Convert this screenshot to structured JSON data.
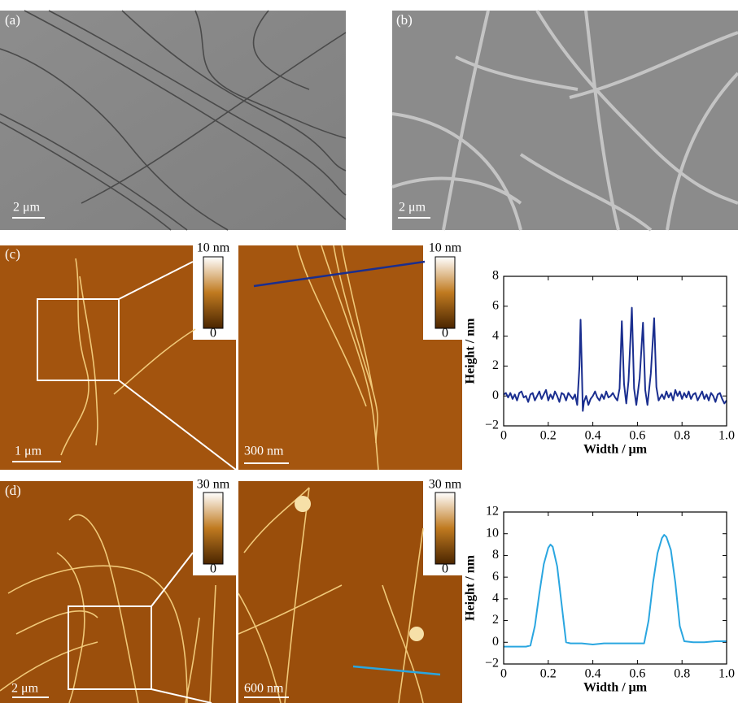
{
  "figure": {
    "panel_labels": [
      "(a)",
      "(b)",
      "(c)",
      "(d)"
    ],
    "scale_bars": [
      "2 μm",
      "2 μm",
      "1 μm",
      "300 nm",
      "2 μm",
      "600 nm"
    ],
    "colorbars": [
      {
        "max": "10 nm",
        "min": "0"
      },
      {
        "max": "10 nm",
        "min": "0"
      },
      {
        "max": "30 nm",
        "min": "0"
      },
      {
        "max": "30 nm",
        "min": "0"
      }
    ]
  },
  "chart_data": [
    {
      "type": "line",
      "x_label": "Width / μm",
      "y_label": "Height / nm",
      "color": "#1a2e8f",
      "xlim": [
        0,
        1
      ],
      "ylim": [
        -2,
        8
      ],
      "xticks": [
        0,
        0.2,
        0.4,
        0.6,
        0.8,
        {
          "value": 1,
          "label": "1.0"
        }
      ],
      "yticks": [
        {
          "value": -2,
          "label": "−2"
        },
        0,
        2,
        4,
        6,
        8
      ],
      "x": [
        0,
        0.01,
        0.02,
        0.03,
        0.04,
        0.05,
        0.06,
        0.07,
        0.08,
        0.09,
        0.1,
        0.11,
        0.12,
        0.13,
        0.14,
        0.15,
        0.16,
        0.17,
        0.18,
        0.19,
        0.2,
        0.21,
        0.22,
        0.23,
        0.24,
        0.25,
        0.26,
        0.27,
        0.28,
        0.29,
        0.3,
        0.31,
        0.32,
        0.33,
        0.34,
        0.345,
        0.35,
        0.355,
        0.36,
        0.37,
        0.38,
        0.39,
        0.4,
        0.41,
        0.42,
        0.43,
        0.44,
        0.45,
        0.46,
        0.47,
        0.48,
        0.49,
        0.5,
        0.51,
        0.52,
        0.53,
        0.54,
        0.55,
        0.56,
        0.575,
        0.585,
        0.595,
        0.61,
        0.625,
        0.635,
        0.645,
        0.66,
        0.675,
        0.685,
        0.695,
        0.71,
        0.72,
        0.73,
        0.74,
        0.75,
        0.76,
        0.77,
        0.78,
        0.79,
        0.8,
        0.81,
        0.82,
        0.83,
        0.84,
        0.85,
        0.86,
        0.87,
        0.88,
        0.89,
        0.9,
        0.91,
        0.92,
        0.93,
        0.94,
        0.95,
        0.96,
        0.97,
        0.98,
        0.99,
        1.0
      ],
      "values": [
        0.1,
        0.2,
        -0.1,
        0.2,
        -0.2,
        0.1,
        -0.3,
        0.2,
        0.3,
        -0.1,
        0.0,
        -0.4,
        0.1,
        0.2,
        -0.3,
        0.0,
        0.3,
        -0.2,
        0.1,
        0.4,
        -0.3,
        0.1,
        -0.2,
        0.3,
        0.0,
        -0.4,
        0.2,
        0.1,
        -0.3,
        0.2,
        0.0,
        -0.2,
        0.1,
        -0.6,
        2.0,
        5.1,
        2.2,
        -1.0,
        -0.4,
        0.0,
        -0.6,
        -0.2,
        0.0,
        0.3,
        -0.1,
        -0.3,
        0.1,
        -0.2,
        0.3,
        -0.1,
        0.0,
        0.2,
        -0.1,
        -0.3,
        0.5,
        5.0,
        0.8,
        -0.5,
        1.0,
        5.9,
        0.5,
        -0.6,
        1.2,
        4.9,
        0.4,
        -0.6,
        1.5,
        5.2,
        0.6,
        -0.3,
        0.1,
        -0.2,
        0.3,
        -0.1,
        0.2,
        -0.3,
        0.4,
        0.0,
        0.3,
        -0.2,
        0.2,
        -0.1,
        0.3,
        -0.2,
        0.1,
        0.2,
        -0.3,
        0.0,
        0.3,
        -0.2,
        0.1,
        -0.3,
        0.2,
        0.0,
        -0.4,
        0.1,
        0.2,
        -0.2,
        -0.5,
        -0.3
      ]
    },
    {
      "type": "line",
      "x_label": "Width / μm",
      "y_label": "Height / nm",
      "color": "#2aa6e0",
      "xlim": [
        0,
        1
      ],
      "ylim": [
        -2,
        12
      ],
      "xticks": [
        0,
        0.2,
        0.4,
        0.6,
        0.8,
        {
          "value": 1,
          "label": "1.0"
        }
      ],
      "yticks": [
        {
          "value": -2,
          "label": "−2"
        },
        0,
        2,
        4,
        6,
        8,
        10,
        12
      ],
      "x": [
        0,
        0.05,
        0.1,
        0.12,
        0.14,
        0.16,
        0.18,
        0.2,
        0.21,
        0.22,
        0.24,
        0.26,
        0.28,
        0.3,
        0.35,
        0.4,
        0.45,
        0.5,
        0.55,
        0.6,
        0.63,
        0.65,
        0.67,
        0.69,
        0.71,
        0.72,
        0.73,
        0.75,
        0.77,
        0.79,
        0.81,
        0.85,
        0.9,
        0.95,
        1.0
      ],
      "values": [
        -0.4,
        -0.4,
        -0.4,
        -0.3,
        1.5,
        4.5,
        7.2,
        8.7,
        9.0,
        8.8,
        7.0,
        3.5,
        0.0,
        -0.1,
        -0.1,
        -0.2,
        -0.1,
        -0.1,
        -0.1,
        -0.1,
        -0.1,
        2.0,
        5.5,
        8.2,
        9.6,
        9.9,
        9.7,
        8.5,
        5.5,
        1.5,
        0.1,
        0.0,
        0.0,
        0.1,
        0.1
      ]
    }
  ]
}
